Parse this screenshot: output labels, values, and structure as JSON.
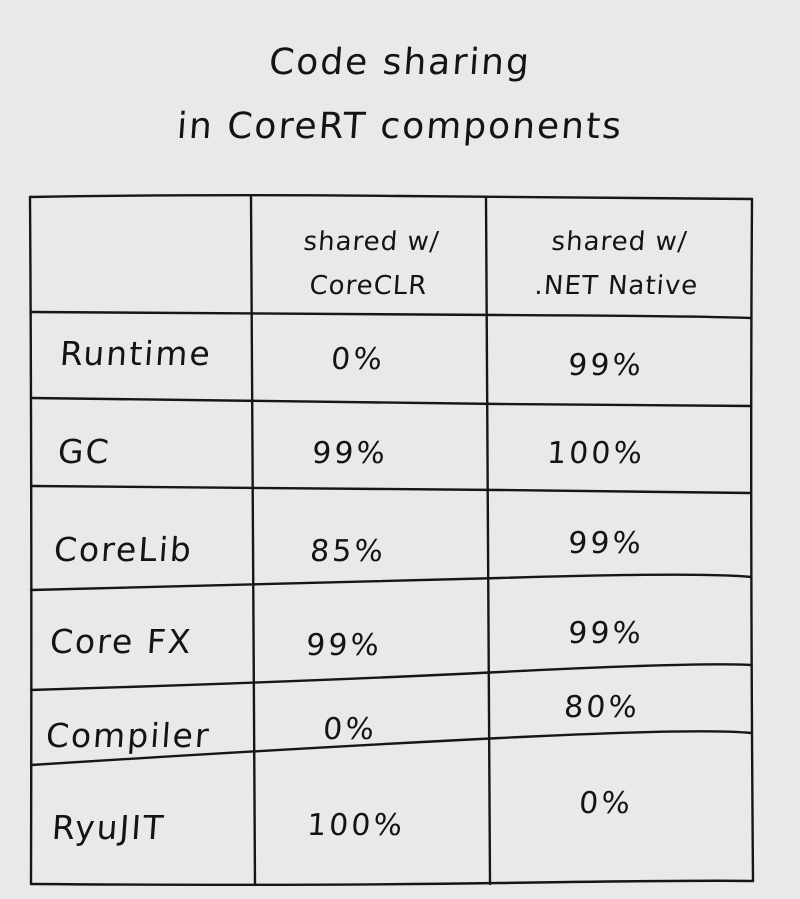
{
  "title": {
    "line1": "Code sharing",
    "line2": "in CoreRT components"
  },
  "columns": [
    {
      "line1": "shared w/",
      "line2": "CoreCLR"
    },
    {
      "line1": "shared w/",
      "line2": ".NET Native"
    }
  ],
  "rows": [
    {
      "component": "Runtime",
      "coreclr": "0%",
      "netnative": "99%"
    },
    {
      "component": "GC",
      "coreclr": "99%",
      "netnative": "100%"
    },
    {
      "component": "CoreLib",
      "coreclr": "85%",
      "netnative": "99%"
    },
    {
      "component": "Core FX",
      "coreclr": "99%",
      "netnative": "99%"
    },
    {
      "component": "Compiler",
      "coreclr": "0%",
      "netnative": "80%"
    },
    {
      "component": "RyuJIT",
      "coreclr": "100%",
      "netnative": "0%"
    }
  ]
}
